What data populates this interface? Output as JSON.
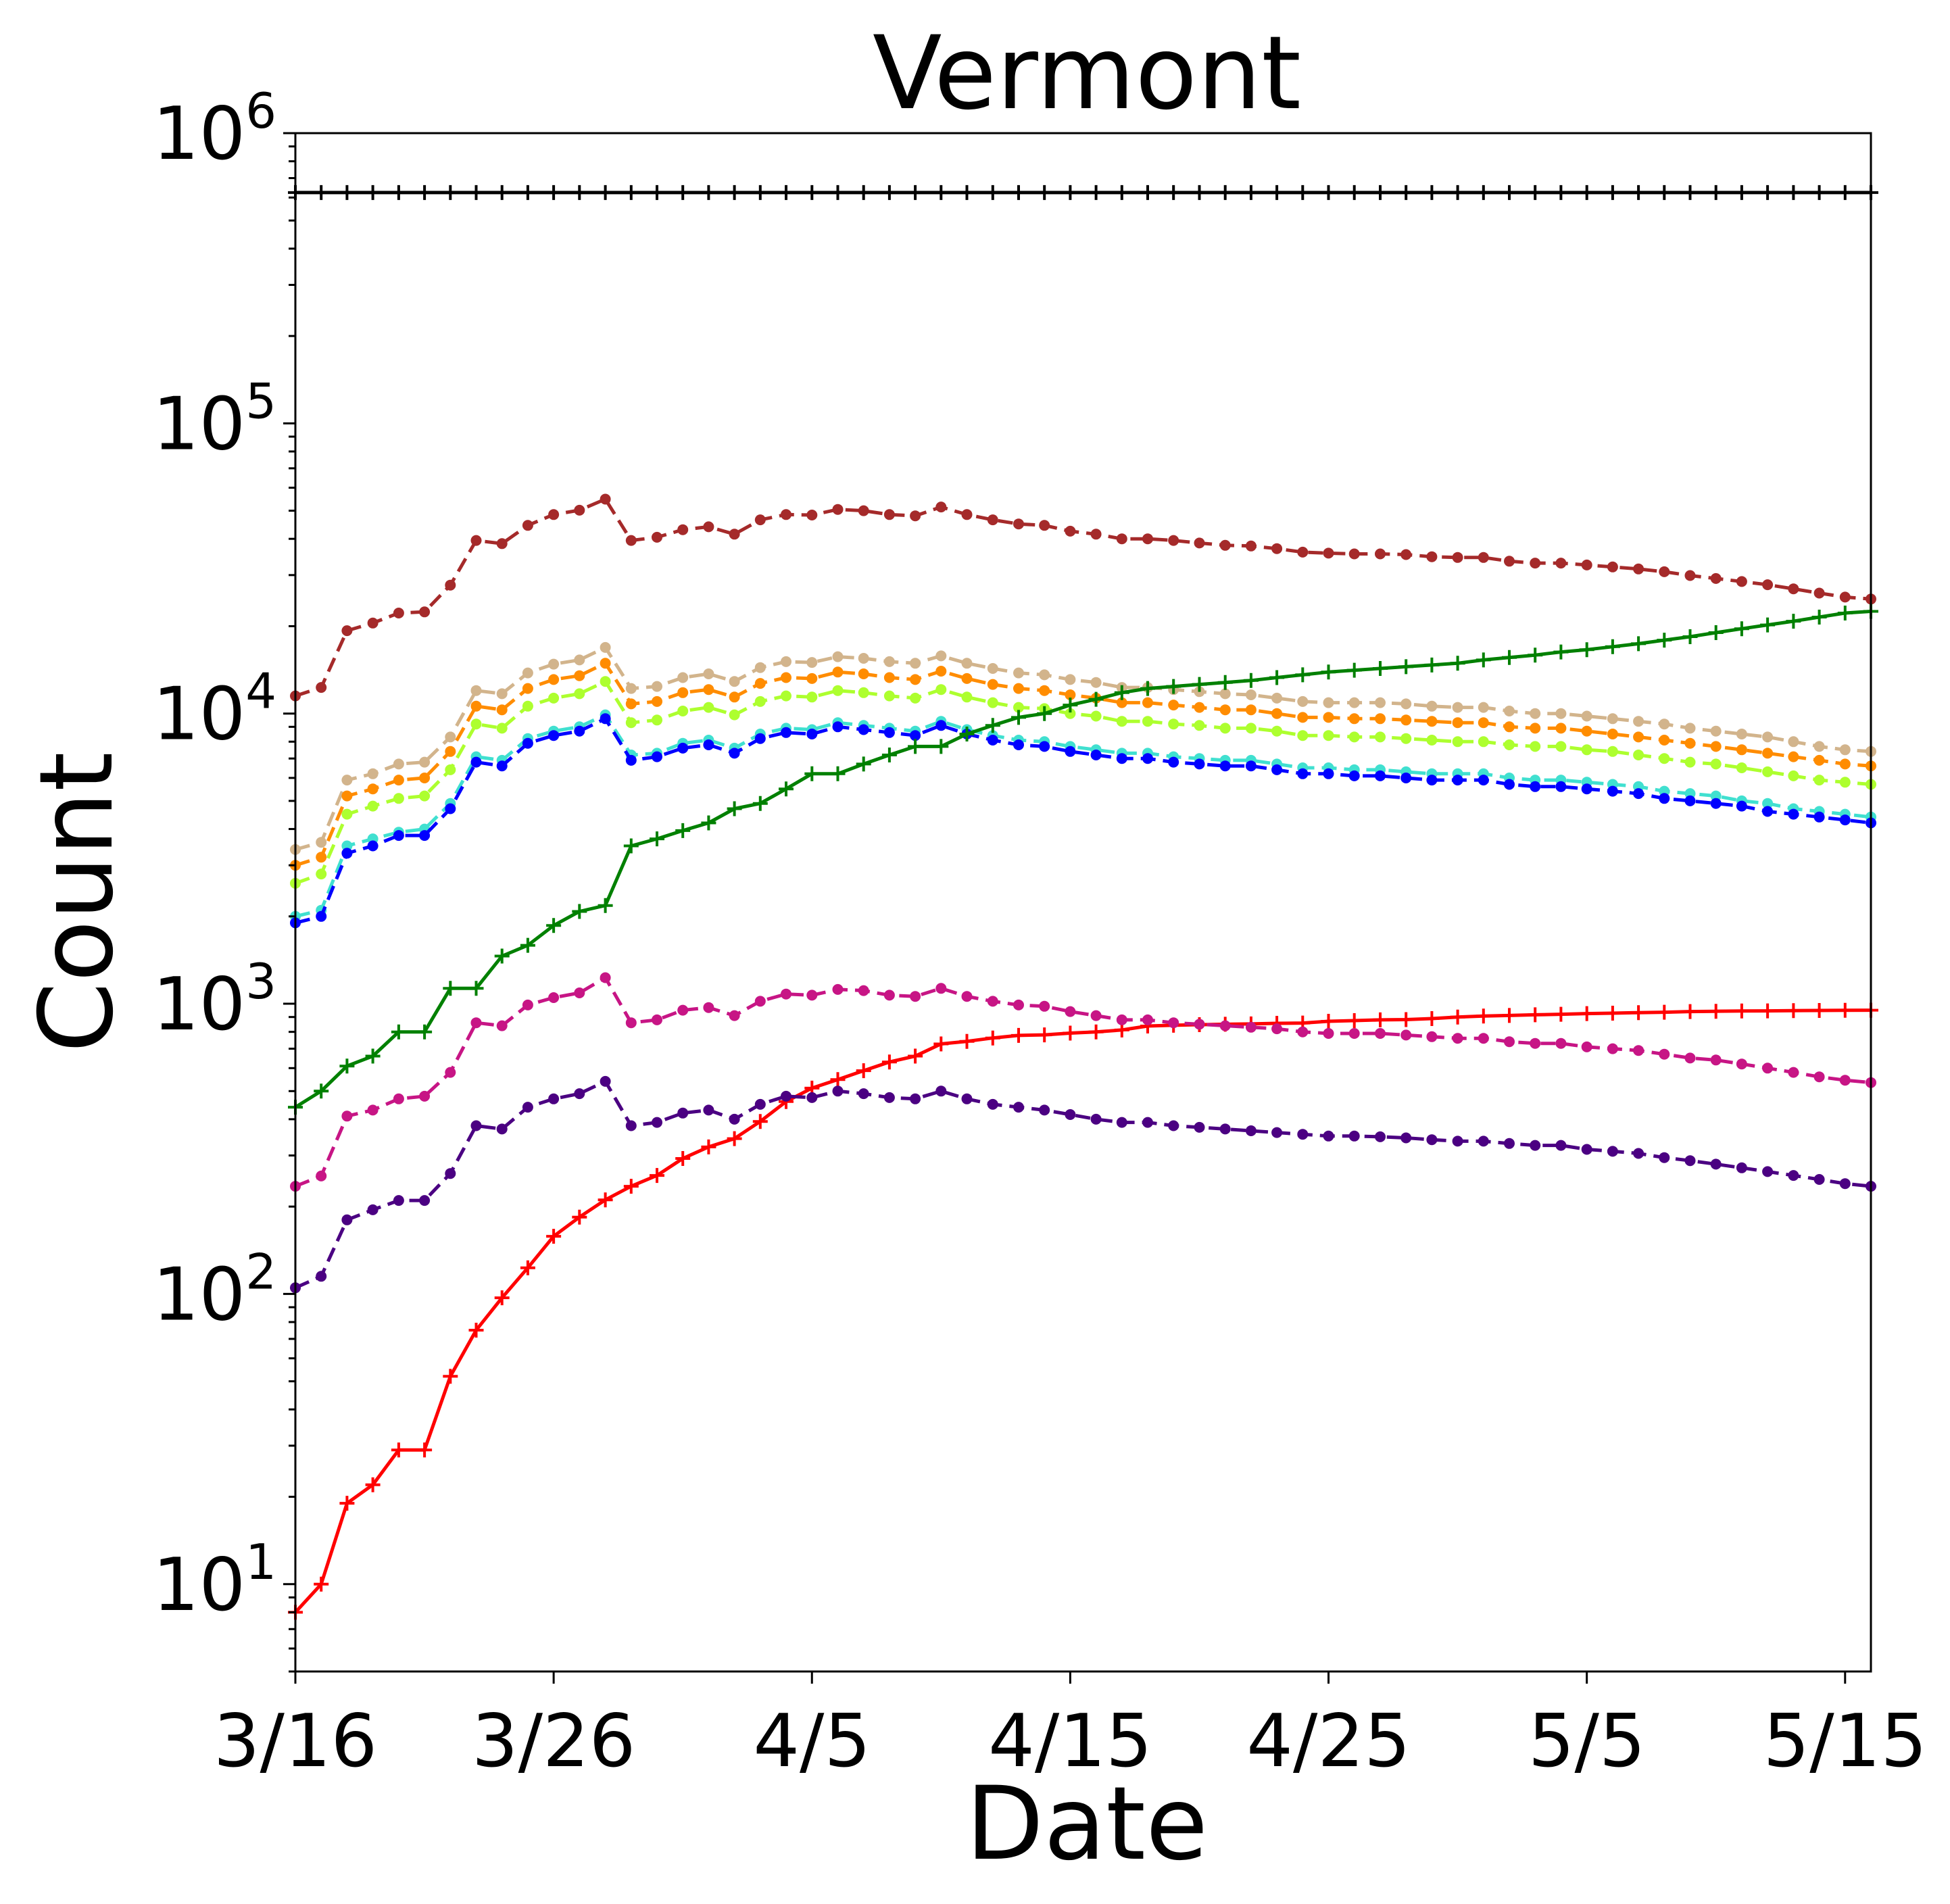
{
  "chart_data": {
    "type": "line",
    "title": "Vermont",
    "xlabel": "Date",
    "ylabel": "Count",
    "yscale": "log",
    "ylim": [
      5,
      1000000
    ],
    "xlim": [
      "3/16",
      "5/16"
    ],
    "x_tick_labels": [
      "3/16",
      "3/26",
      "4/5",
      "4/15",
      "4/25",
      "5/5",
      "5/15"
    ],
    "y_tick_labels": [
      {
        "base": "10",
        "exp": "1"
      },
      {
        "base": "10",
        "exp": "2"
      },
      {
        "base": "10",
        "exp": "3"
      },
      {
        "base": "10",
        "exp": "4"
      },
      {
        "base": "10",
        "exp": "5"
      },
      {
        "base": "10",
        "exp": "6"
      }
    ],
    "grid": false,
    "legend": "none",
    "x": [
      "3/16",
      "3/17",
      "3/18",
      "3/19",
      "3/20",
      "3/21",
      "3/22",
      "3/23",
      "3/24",
      "3/25",
      "3/26",
      "3/27",
      "3/28",
      "3/29",
      "3/30",
      "3/31",
      "4/1",
      "4/2",
      "4/3",
      "4/4",
      "4/5",
      "4/6",
      "4/7",
      "4/8",
      "4/9",
      "4/10",
      "4/11",
      "4/12",
      "4/13",
      "4/14",
      "4/15",
      "4/16",
      "4/17",
      "4/18",
      "4/19",
      "4/20",
      "4/21",
      "4/22",
      "4/23",
      "4/24",
      "4/25",
      "4/26",
      "4/27",
      "4/28",
      "4/29",
      "4/30",
      "5/1",
      "5/2",
      "5/3",
      "5/4",
      "5/5",
      "5/6",
      "5/7",
      "5/8",
      "5/9",
      "5/10",
      "5/11",
      "5/12",
      "5/13",
      "5/14",
      "5/15",
      "5/16"
    ],
    "series": [
      {
        "color": "#000000",
        "style": "solid",
        "marker": "plus",
        "values": [
          624000,
          624000,
          624000,
          624000,
          624000,
          624000,
          624000,
          624000,
          624000,
          624000,
          624000,
          624000,
          624000,
          624000,
          624000,
          624000,
          624000,
          624000,
          624000,
          624000,
          624000,
          624000,
          624000,
          624000,
          624000,
          624000,
          624000,
          624000,
          624000,
          624000,
          624000,
          624000,
          624000,
          624000,
          624000,
          624000,
          624000,
          624000,
          624000,
          624000,
          624000,
          624000,
          624000,
          624000,
          624000,
          624000,
          624000,
          624000,
          624000,
          624000,
          624000,
          624000,
          624000,
          624000,
          624000,
          624000,
          624000,
          624000,
          624000,
          624000,
          624000,
          624000
        ]
      },
      {
        "color": "#a52a2a",
        "style": "dashed",
        "marker": "dot",
        "values": [
          11500,
          12300,
          19300,
          20500,
          22200,
          22400,
          27700,
          39500,
          38500,
          44500,
          48500,
          50200,
          54800,
          39500,
          40500,
          43000,
          44000,
          41500,
          46500,
          48500,
          48300,
          50500,
          50000,
          48500,
          48000,
          51500,
          48500,
          46500,
          45000,
          44500,
          42500,
          41500,
          40000,
          40000,
          39500,
          38700,
          38000,
          37800,
          37000,
          36000,
          35700,
          35500,
          35500,
          35300,
          34700,
          34500,
          34500,
          33500,
          33000,
          33000,
          32500,
          32000,
          31500,
          30800,
          29900,
          29200,
          28500,
          27800,
          26900,
          26000,
          25200,
          24800
        ]
      },
      {
        "color": "#d2b48c",
        "style": "dashed",
        "marker": "dot",
        "values": [
          3400,
          3600,
          5900,
          6200,
          6700,
          6800,
          8300,
          12000,
          11700,
          13800,
          14800,
          15300,
          16900,
          12200,
          12400,
          13300,
          13700,
          12900,
          14400,
          15100,
          15000,
          15700,
          15500,
          15100,
          14900,
          15800,
          14900,
          14300,
          13800,
          13600,
          13100,
          12800,
          12300,
          12300,
          12100,
          11900,
          11700,
          11600,
          11300,
          11000,
          10900,
          10900,
          10900,
          10800,
          10600,
          10500,
          10500,
          10200,
          10000,
          10000,
          9800,
          9600,
          9400,
          9200,
          8900,
          8700,
          8500,
          8300,
          8000,
          7700,
          7500,
          7400
        ]
      },
      {
        "color": "#ff8c00",
        "style": "dashed",
        "marker": "dot",
        "values": [
          3000,
          3200,
          5200,
          5500,
          5900,
          6000,
          7400,
          10600,
          10300,
          12200,
          13100,
          13500,
          14900,
          10800,
          11000,
          11800,
          12100,
          11400,
          12700,
          13300,
          13200,
          13900,
          13700,
          13300,
          13100,
          14000,
          13200,
          12600,
          12200,
          12000,
          11600,
          11300,
          10900,
          10900,
          10700,
          10500,
          10300,
          10300,
          10000,
          9700,
          9700,
          9600,
          9600,
          9500,
          9400,
          9300,
          9300,
          9000,
          8900,
          8900,
          8700,
          8500,
          8300,
          8100,
          7900,
          7700,
          7500,
          7300,
          7100,
          6900,
          6700,
          6600
        ]
      },
      {
        "color": "#adff2f",
        "style": "dashed",
        "marker": "dot",
        "values": [
          2600,
          2800,
          4500,
          4800,
          5100,
          5200,
          6400,
          9200,
          8900,
          10600,
          11300,
          11700,
          12900,
          9300,
          9500,
          10200,
          10500,
          9900,
          11000,
          11500,
          11400,
          12000,
          11800,
          11500,
          11300,
          12100,
          11400,
          10900,
          10500,
          10400,
          10000,
          9800,
          9400,
          9400,
          9200,
          9100,
          8900,
          8900,
          8700,
          8400,
          8400,
          8300,
          8300,
          8200,
          8100,
          8000,
          8000,
          7800,
          7700,
          7700,
          7500,
          7400,
          7200,
          7000,
          6800,
          6700,
          6500,
          6300,
          6100,
          5900,
          5800,
          5700
        ]
      },
      {
        "color": "#40e0d0",
        "style": "dashed",
        "marker": "dot",
        "values": [
          2000,
          2100,
          3500,
          3700,
          3900,
          4000,
          4900,
          7100,
          6900,
          8200,
          8700,
          9000,
          9900,
          7200,
          7300,
          7900,
          8100,
          7600,
          8500,
          8900,
          8800,
          9300,
          9100,
          8900,
          8700,
          9400,
          8800,
          8400,
          8100,
          8000,
          7700,
          7500,
          7300,
          7300,
          7100,
          7000,
          6900,
          6900,
          6700,
          6500,
          6500,
          6400,
          6400,
          6300,
          6200,
          6200,
          6200,
          6000,
          5900,
          5900,
          5800,
          5700,
          5600,
          5400,
          5300,
          5200,
          5000,
          4900,
          4700,
          4600,
          4500,
          4400
        ]
      },
      {
        "color": "#0000ff",
        "style": "dashed",
        "marker": "dot",
        "values": [
          1900,
          2000,
          3300,
          3500,
          3800,
          3800,
          4700,
          6800,
          6600,
          7900,
          8400,
          8700,
          9600,
          6900,
          7100,
          7600,
          7800,
          7300,
          8200,
          8600,
          8500,
          9000,
          8800,
          8600,
          8400,
          9100,
          8500,
          8100,
          7800,
          7700,
          7400,
          7200,
          7000,
          7000,
          6800,
          6700,
          6600,
          6600,
          6400,
          6200,
          6200,
          6100,
          6100,
          6000,
          5900,
          5900,
          5900,
          5700,
          5600,
          5600,
          5500,
          5400,
          5300,
          5100,
          5000,
          4900,
          4800,
          4600,
          4500,
          4400,
          4300,
          4200
        ]
      },
      {
        "color": "#008000",
        "style": "solid",
        "marker": "plus",
        "values": [
          440,
          500,
          610,
          660,
          800,
          800,
          1130,
          1130,
          1460,
          1590,
          1860,
          2080,
          2180,
          3500,
          3700,
          3950,
          4200,
          4700,
          4900,
          5500,
          6200,
          6200,
          6700,
          7200,
          7700,
          7700,
          8500,
          9100,
          9700,
          10000,
          10700,
          11200,
          11800,
          12200,
          12400,
          12600,
          12800,
          13000,
          13300,
          13600,
          13900,
          14100,
          14300,
          14500,
          14700,
          14900,
          15300,
          15600,
          15900,
          16300,
          16600,
          17000,
          17400,
          17900,
          18400,
          19000,
          19600,
          20200,
          20800,
          21500,
          22200,
          22500
        ]
      },
      {
        "color": "#ff0000",
        "style": "solid",
        "marker": "plus",
        "values": [
          8,
          10,
          19,
          22,
          29,
          29,
          52,
          75,
          97,
          123,
          158,
          184,
          211,
          235,
          256,
          293,
          321,
          343,
          393,
          460,
          512,
          548,
          588,
          630,
          660,
          727,
          742,
          762,
          778,
          781,
          792,
          800,
          812,
          838,
          843,
          847,
          850,
          852,
          856,
          858,
          870,
          875,
          880,
          882,
          889,
          900,
          907,
          911,
          916,
          920,
          925,
          928,
          932,
          935,
          940,
          942,
          944,
          945,
          947,
          948,
          949,
          950
        ]
      },
      {
        "color": "#c71585",
        "style": "dashed",
        "marker": "dot",
        "values": [
          235,
          255,
          410,
          430,
          470,
          480,
          580,
          860,
          840,
          990,
          1050,
          1090,
          1230,
          860,
          880,
          950,
          970,
          910,
          1020,
          1080,
          1070,
          1120,
          1110,
          1070,
          1060,
          1130,
          1060,
          1020,
          990,
          980,
          940,
          910,
          880,
          880,
          860,
          850,
          840,
          830,
          820,
          800,
          790,
          790,
          790,
          780,
          770,
          760,
          760,
          740,
          730,
          730,
          710,
          700,
          690,
          670,
          650,
          640,
          620,
          600,
          580,
          560,
          545,
          535
        ]
      },
      {
        "color": "#4b0082",
        "style": "dashed",
        "marker": "dot",
        "values": [
          105,
          115,
          180,
          195,
          210,
          210,
          260,
          380,
          370,
          440,
          470,
          490,
          540,
          380,
          390,
          420,
          430,
          400,
          450,
          480,
          475,
          500,
          490,
          475,
          470,
          500,
          470,
          450,
          440,
          430,
          415,
          400,
          390,
          390,
          380,
          375,
          370,
          365,
          360,
          355,
          350,
          350,
          348,
          345,
          340,
          336,
          336,
          330,
          325,
          325,
          315,
          310,
          305,
          295,
          288,
          280,
          272,
          264,
          256,
          248,
          240,
          235
        ]
      }
    ]
  }
}
